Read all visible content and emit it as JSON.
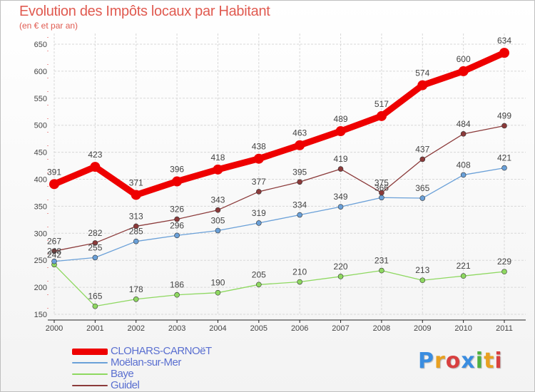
{
  "title": "Evolution des Impôts locaux par Habitant",
  "subtitle": "(en € et par an)",
  "logo": {
    "text": "Proxiti",
    "colors": [
      "#3a8de0",
      "#e8a020",
      "#d84040",
      "#3a8de0",
      "#50b040",
      "#e8a020",
      "#d84040"
    ]
  },
  "chart_data": {
    "type": "line",
    "x": [
      "2000",
      "2001",
      "2002",
      "2003",
      "2004",
      "2005",
      "2006",
      "2007",
      "2008",
      "2009",
      "2010",
      "2011"
    ],
    "ylim": [
      150,
      650
    ],
    "yticks": [
      "150",
      "200",
      "250",
      "300",
      "350",
      "400",
      "450",
      "500",
      "550",
      "600",
      "650"
    ],
    "grid": true,
    "legend": "bottom-left",
    "series": [
      {
        "name": "CLOHARS-CARNOëT",
        "color": "#ee0000",
        "width": 9,
        "marker": 7,
        "values": [
          391,
          423,
          371,
          396,
          418,
          438,
          463,
          489,
          517,
          574,
          600,
          634
        ],
        "labels": [
          "391",
          "423",
          "371",
          "396",
          "418",
          "438",
          "463",
          "489",
          "517",
          "574",
          "600",
          "634"
        ]
      },
      {
        "name": "Moëlan-sur-Mer",
        "color": "#6aa0d8",
        "width": 1.3,
        "marker": 3.5,
        "values": [
          248,
          255,
          285,
          296,
          305,
          319,
          334,
          349,
          366,
          365,
          408,
          421
        ],
        "labels": [
          "248",
          "255",
          "285",
          "296",
          "305",
          "319",
          "334",
          "349",
          "366",
          "365",
          "408",
          "421"
        ]
      },
      {
        "name": "Baye",
        "color": "#8ed860",
        "width": 1.3,
        "marker": 3.5,
        "values": [
          242,
          165,
          178,
          186,
          190,
          205,
          210,
          220,
          231,
          213,
          221,
          229
        ],
        "labels": [
          "242",
          "165",
          "178",
          "186",
          "190",
          "205",
          "210",
          "220",
          "231",
          "213",
          "221",
          "229"
        ]
      },
      {
        "name": "Guidel",
        "color": "#8b3a3a",
        "width": 1.3,
        "marker": 3.5,
        "values": [
          267,
          282,
          313,
          326,
          343,
          377,
          395,
          419,
          375,
          437,
          484,
          499
        ],
        "labels": [
          "267",
          "282",
          "313",
          "326",
          "343",
          "377",
          "395",
          "419",
          "375",
          "437",
          "484",
          "499"
        ]
      }
    ]
  }
}
